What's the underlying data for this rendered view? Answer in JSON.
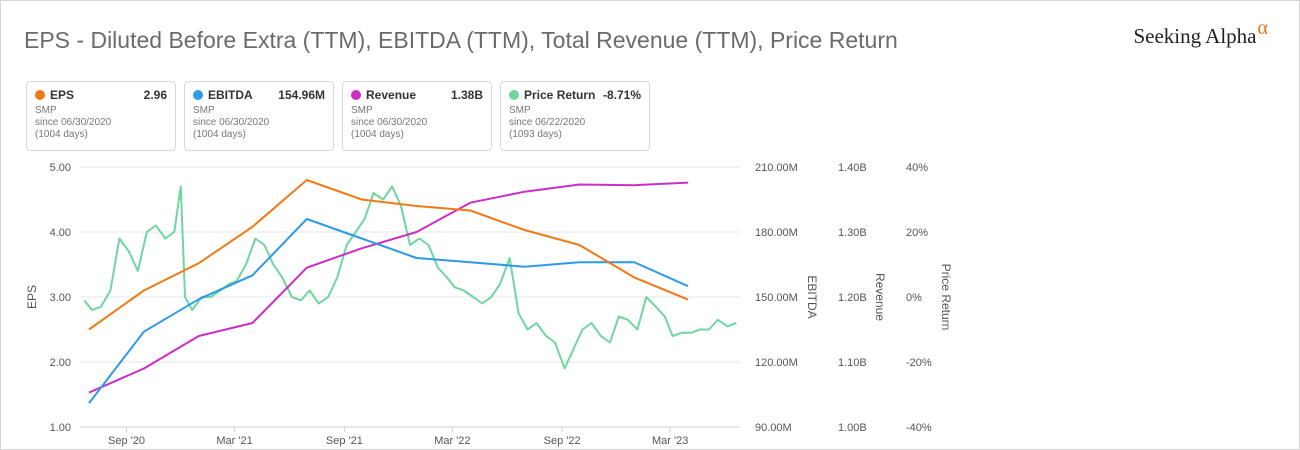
{
  "header": {
    "title": "EPS - Diluted Before Extra (TTM), EBITDA (TTM), Total Revenue (TTM), Price Return",
    "logo_text": "Seeking Alpha",
    "logo_symbol": "α"
  },
  "legend": [
    {
      "name": "EPS",
      "value": "2.96",
      "ticker": "SMP",
      "since": "since 06/30/2020",
      "days": "(1004 days)",
      "color": "#f07a16"
    },
    {
      "name": "EBITDA",
      "value": "154.96M",
      "ticker": "SMP",
      "since": "since 06/30/2020",
      "days": "(1004 days)",
      "color": "#2d9ae8"
    },
    {
      "name": "Revenue",
      "value": "1.38B",
      "ticker": "SMP",
      "since": "since 06/30/2020",
      "days": "(1004 days)",
      "color": "#cc2ec4"
    },
    {
      "name": "Price Return",
      "value": "-8.71%",
      "ticker": "SMP",
      "since": "since 06/22/2020",
      "days": "(1093 days)",
      "color": "#6fd6a0"
    }
  ],
  "chart_data": {
    "type": "line",
    "title": "EPS - Diluted Before Extra (TTM), EBITDA (TTM), Total Revenue (TTM), Price Return",
    "x_tick_labels": [
      "Sep '20",
      "Mar '21",
      "Sep '21",
      "Mar '22",
      "Sep '22",
      "Mar '23"
    ],
    "axes": {
      "eps": {
        "label": "EPS",
        "range": [
          1.0,
          5.0
        ],
        "ticks": [
          "5.00",
          "4.00",
          "3.00",
          "2.00",
          "1.00"
        ]
      },
      "ebitda": {
        "label": "EBITDA",
        "range": [
          90,
          210
        ],
        "ticks": [
          "210.00M",
          "180.00M",
          "150.00M",
          "120.00M",
          "90.00M"
        ]
      },
      "revenue": {
        "label": "Revenue",
        "range": [
          1.0,
          1.4
        ],
        "ticks": [
          "1.40B",
          "1.30B",
          "1.20B",
          "1.10B",
          "1.00B"
        ]
      },
      "price_return": {
        "label": "Price Return",
        "range": [
          -40,
          40
        ],
        "ticks": [
          "40%",
          "20%",
          "0%",
          "-20%",
          "-40%"
        ]
      }
    },
    "grid": true,
    "series": [
      {
        "name": "EPS",
        "axis": "eps",
        "color": "#f07a16",
        "x": [
          "2020-06-30",
          "2020-09-30",
          "2020-12-31",
          "2021-03-31",
          "2021-06-30",
          "2021-09-30",
          "2021-12-31",
          "2022-03-31",
          "2022-06-30",
          "2022-09-30",
          "2022-12-31",
          "2023-03-31"
        ],
        "y": [
          2.5,
          3.1,
          3.52,
          4.08,
          4.8,
          4.5,
          4.4,
          4.33,
          4.03,
          3.8,
          3.3,
          2.96
        ]
      },
      {
        "name": "EBITDA",
        "axis": "ebitda",
        "color": "#2d9ae8",
        "x": [
          "2020-06-30",
          "2020-09-30",
          "2020-12-31",
          "2021-03-31",
          "2021-06-30",
          "2021-09-30",
          "2021-12-31",
          "2022-03-31",
          "2022-06-30",
          "2022-09-30",
          "2022-12-31",
          "2023-03-31"
        ],
        "y": [
          101,
          134,
          149,
          160,
          186,
          177,
          168,
          166,
          164,
          166,
          166,
          155
        ]
      },
      {
        "name": "Revenue",
        "axis": "revenue",
        "color": "#cc2ec4",
        "x": [
          "2020-06-30",
          "2020-09-30",
          "2020-12-31",
          "2021-03-31",
          "2021-06-30",
          "2021-09-30",
          "2021-12-31",
          "2022-03-31",
          "2022-06-30",
          "2022-09-30",
          "2022-12-31",
          "2023-03-31"
        ],
        "y": [
          1.053,
          1.09,
          1.14,
          1.16,
          1.245,
          1.275,
          1.3,
          1.345,
          1.362,
          1.373,
          1.372,
          1.376
        ]
      },
      {
        "name": "Price Return",
        "axis": "price_return",
        "color": "#6fd6a0",
        "x": [
          "2020-06-22",
          "2020-07-05",
          "2020-07-20",
          "2020-08-05",
          "2020-08-20",
          "2020-09-05",
          "2020-09-20",
          "2020-10-05",
          "2020-10-20",
          "2020-11-05",
          "2020-11-20",
          "2020-12-01",
          "2020-12-08",
          "2020-12-20",
          "2021-01-05",
          "2021-01-20",
          "2021-02-05",
          "2021-02-20",
          "2021-03-05",
          "2021-03-20",
          "2021-04-05",
          "2021-04-20",
          "2021-05-05",
          "2021-05-20",
          "2021-06-05",
          "2021-06-20",
          "2021-07-05",
          "2021-07-20",
          "2021-08-05",
          "2021-08-20",
          "2021-09-05",
          "2021-09-20",
          "2021-10-05",
          "2021-10-20",
          "2021-11-05",
          "2021-11-20",
          "2021-12-05",
          "2021-12-20",
          "2022-01-05",
          "2022-01-20",
          "2022-02-05",
          "2022-02-20",
          "2022-03-05",
          "2022-03-20",
          "2022-04-05",
          "2022-04-20",
          "2022-05-05",
          "2022-05-20",
          "2022-06-05",
          "2022-06-20",
          "2022-07-05",
          "2022-07-20",
          "2022-08-05",
          "2022-08-20",
          "2022-09-05",
          "2022-09-20",
          "2022-10-05",
          "2022-10-20",
          "2022-11-05",
          "2022-11-20",
          "2022-12-05",
          "2022-12-20",
          "2023-01-05",
          "2023-01-20",
          "2023-02-05",
          "2023-02-20",
          "2023-03-05",
          "2023-03-20",
          "2023-04-05",
          "2023-04-20",
          "2023-05-05",
          "2023-05-20",
          "2023-06-05",
          "2023-06-20"
        ],
        "y": [
          -1,
          -4,
          -3,
          2,
          18,
          14,
          8,
          20,
          22,
          18,
          20,
          34,
          0,
          -4,
          0,
          0,
          2,
          4,
          5,
          10,
          18,
          16,
          10,
          6,
          0,
          -1,
          2,
          -2,
          0,
          6,
          16,
          20,
          24,
          32,
          30,
          34,
          28,
          16,
          18,
          16,
          9,
          6,
          3,
          2,
          0,
          -2,
          0,
          4,
          12,
          -5,
          -10,
          -8,
          -12,
          -14,
          -22,
          -16,
          -10,
          -8,
          -12,
          -14,
          -6,
          -7,
          -10,
          0,
          -3,
          -6,
          -12,
          -11,
          -11,
          -10,
          -10,
          -7,
          -9,
          -8
        ]
      }
    ]
  }
}
